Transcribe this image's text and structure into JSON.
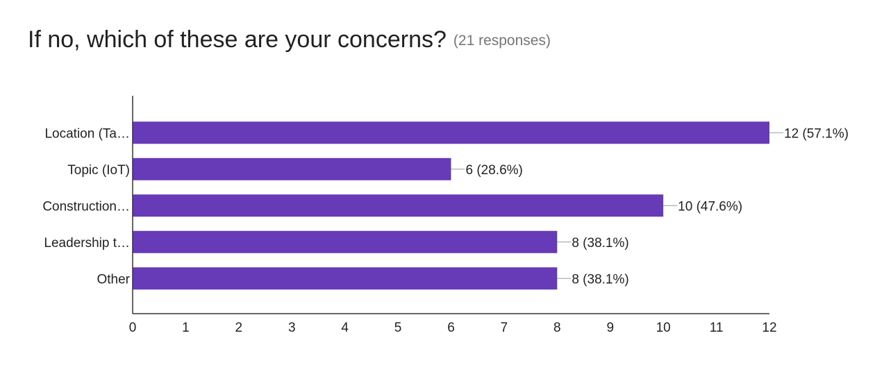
{
  "header": {
    "title": "If no, which of these are your concerns?",
    "subtitle": "(21 responses)"
  },
  "colors": {
    "bar": "#673ab7",
    "axis": "#333333",
    "leader": "#999999"
  },
  "chart_data": {
    "type": "bar",
    "orientation": "horizontal",
    "title": "If no, which of these are your concerns?",
    "subtitle": "(21 responses)",
    "categories": [
      "Location (Ta…",
      "Topic (IoT)",
      "Construction…",
      "Leadership t…",
      "Other"
    ],
    "values": [
      12,
      6,
      10,
      8,
      8
    ],
    "data_labels": [
      "12 (57.1%)",
      "6 (28.6%)",
      "10 (47.6%)",
      "8 (38.1%)",
      "8 (38.1%)"
    ],
    "xticks": [
      "0",
      "1",
      "2",
      "3",
      "4",
      "5",
      "6",
      "7",
      "8",
      "9",
      "10",
      "11",
      "12"
    ],
    "xlim": [
      0,
      12
    ],
    "grid": false,
    "legend": "none"
  }
}
